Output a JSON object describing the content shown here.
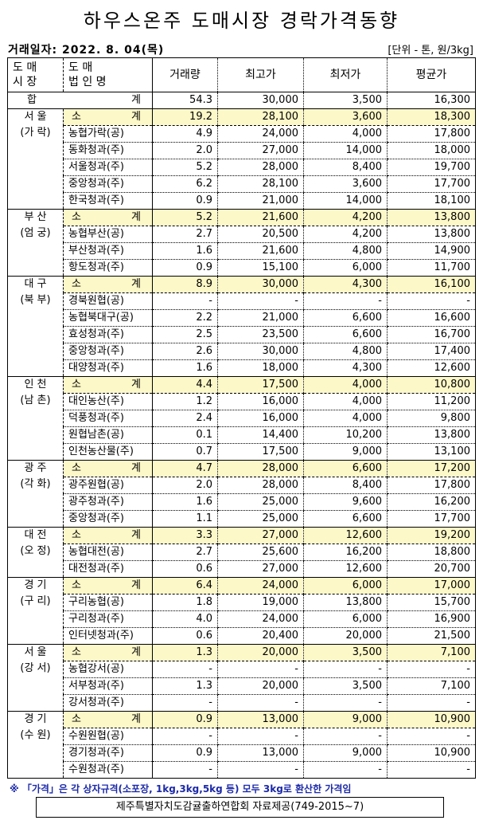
{
  "title": "하우스온주 도매시장 경락가격동향",
  "trade_date": "거래일자: 2022.  8. 04(목)",
  "unit": "[단위 - 톤, 원/3kg]",
  "headers": {
    "market_top": "도   매",
    "market_bottom": "시   장",
    "corp_top": "도       매",
    "corp_bottom": "법  인  명",
    "volume": "거래량",
    "max": "최고가",
    "min": "최저가",
    "avg": "평균가"
  },
  "total": {
    "label_left": "합",
    "label_right": "계",
    "volume": "54.3",
    "max": "30,000",
    "min": "3,500",
    "avg": "16,300"
  },
  "subtotal_label": {
    "left": "소",
    "right": "계"
  },
  "groups": [
    {
      "market": "서  울",
      "sub": "(가 락)",
      "subtotal": [
        "19.2",
        "28,100",
        "3,600",
        "18,300"
      ],
      "rows": [
        [
          "농협가락(공)",
          "4.9",
          "24,000",
          "4,000",
          "17,800"
        ],
        [
          "동화청과(주)",
          "2.0",
          "27,000",
          "14,000",
          "18,000"
        ],
        [
          "서울청과(주)",
          "5.2",
          "28,000",
          "8,400",
          "19,700"
        ],
        [
          "중앙청과(주)",
          "6.2",
          "28,100",
          "3,600",
          "17,700"
        ],
        [
          "한국청과(주)",
          "0.9",
          "21,000",
          "14,000",
          "18,100"
        ]
      ]
    },
    {
      "market": "부  산",
      "sub": "(엄 궁)",
      "subtotal": [
        "5.2",
        "21,600",
        "4,200",
        "13,800"
      ],
      "rows": [
        [
          "농협부산(공)",
          "2.7",
          "20,500",
          "4,200",
          "13,800"
        ],
        [
          "부산청과(주)",
          "1.6",
          "21,600",
          "4,800",
          "14,900"
        ],
        [
          "항도청과(주)",
          "0.9",
          "15,100",
          "6,000",
          "11,700"
        ]
      ]
    },
    {
      "market": "대  구",
      "sub": "(북 부)",
      "subtotal": [
        "8.9",
        "30,000",
        "4,300",
        "16,100"
      ],
      "rows": [
        [
          "경북원협(공)",
          "-",
          "-",
          "-",
          "-"
        ],
        [
          "농협북대구(공)",
          "2.2",
          "21,000",
          "6,600",
          "16,600"
        ],
        [
          "효성청과(주)",
          "2.5",
          "23,500",
          "6,600",
          "16,700"
        ],
        [
          "중앙청과(주)",
          "2.6",
          "30,000",
          "4,800",
          "17,400"
        ],
        [
          "대양청과(주)",
          "1.6",
          "18,000",
          "4,300",
          "12,600"
        ]
      ]
    },
    {
      "market": "인  천",
      "sub": "(남 촌)",
      "subtotal": [
        "4.4",
        "17,500",
        "4,000",
        "10,800"
      ],
      "rows": [
        [
          "대인농산(주)",
          "1.2",
          "16,000",
          "4,000",
          "11,200"
        ],
        [
          "덕풍청과(주)",
          "2.4",
          "16,000",
          "4,000",
          "9,800"
        ],
        [
          "원협남촌(공)",
          "0.1",
          "14,400",
          "10,200",
          "13,800"
        ],
        [
          "인천농산물(주)",
          "0.7",
          "17,500",
          "9,000",
          "13,100"
        ]
      ]
    },
    {
      "market": "광  주",
      "sub": "(각 화)",
      "subtotal": [
        "4.7",
        "28,000",
        "6,600",
        "17,200"
      ],
      "rows": [
        [
          "광주원협(공)",
          "2.0",
          "28,000",
          "8,400",
          "17,800"
        ],
        [
          "광주청과(주)",
          "1.6",
          "25,000",
          "9,600",
          "16,200"
        ],
        [
          "중앙청과(주)",
          "1.1",
          "25,000",
          "6,600",
          "17,700"
        ]
      ]
    },
    {
      "market": "대  전",
      "sub": "(오 정)",
      "subtotal": [
        "3.3",
        "27,000",
        "12,600",
        "19,200"
      ],
      "rows": [
        [
          "농협대전(공)",
          "2.7",
          "25,600",
          "16,200",
          "18,800"
        ],
        [
          "대전청과(주)",
          "0.6",
          "27,000",
          "12,600",
          "20,700"
        ]
      ]
    },
    {
      "market": "경  기",
      "sub": "(구 리)",
      "subtotal": [
        "6.4",
        "24,000",
        "6,000",
        "17,000"
      ],
      "rows": [
        [
          "구리농협(공)",
          "1.8",
          "19,000",
          "13,800",
          "15,700"
        ],
        [
          "구리청과(주)",
          "4.0",
          "24,000",
          "6,000",
          "16,900"
        ],
        [
          "인터넷청과(주)",
          "0.6",
          "20,400",
          "20,000",
          "21,500"
        ]
      ]
    },
    {
      "market": "서  울",
      "sub": "(강 서)",
      "subtotal": [
        "1.3",
        "20,000",
        "3,500",
        "7,100"
      ],
      "rows": [
        [
          "농협강서(공)",
          "-",
          "-",
          "-",
          "-"
        ],
        [
          "서부청과(주)",
          "1.3",
          "20,000",
          "3,500",
          "7,100"
        ],
        [
          "강서청과(주)",
          "-",
          "-",
          "-",
          "-"
        ]
      ]
    },
    {
      "market": "경  기",
      "sub": "(수 원)",
      "subtotal": [
        "0.9",
        "13,000",
        "9,000",
        "10,900"
      ],
      "rows": [
        [
          "수원원협(공)",
          "-",
          "-",
          "-",
          "-"
        ],
        [
          "경기청과(주)",
          "0.9",
          "13,000",
          "9,000",
          "10,900"
        ],
        [
          "수원청과(주)",
          "-",
          "-",
          "-",
          "-"
        ]
      ]
    }
  ],
  "note": "※  「가격」은 각 상자규격(소포장, 1kg,3kg,5kg 등) 모두 3kg로 환산한 가격임",
  "source": "제주특별자치도감귤출하연합회 자료제공(749-2015~7)",
  "colors": {
    "subtotal_bg": "#fdf8c8",
    "note_text": "#1c2aa8"
  }
}
